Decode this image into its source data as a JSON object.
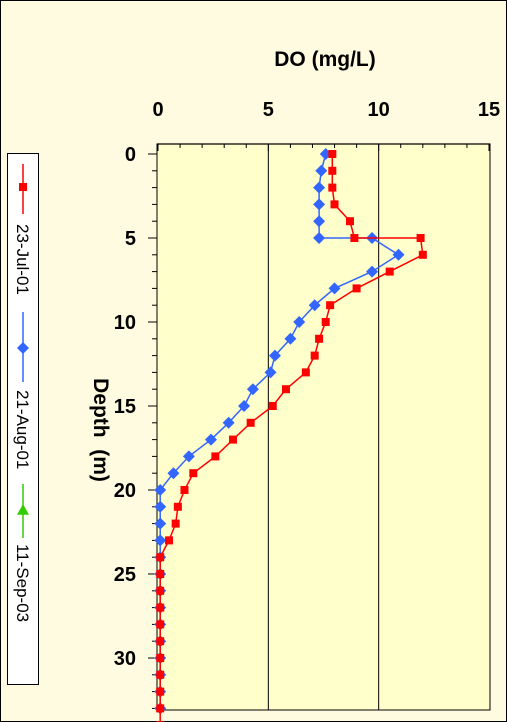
{
  "chart_data": {
    "type": "line",
    "title": "DO (mg/L)",
    "xlabel": "",
    "ylabel": "Depth  (m)",
    "xlim": [
      0,
      15
    ],
    "ylim": [
      0,
      34.5
    ],
    "y_inverted": true,
    "x_axis_position": "top",
    "x_ticks": [
      0,
      5,
      10,
      15
    ],
    "y_ticks": [
      0,
      5,
      10,
      15,
      20,
      25,
      30
    ],
    "vertical_gridlines": [
      5,
      10
    ],
    "legend_placement": "left, rotated vertical",
    "plot_background": "#ffffcc",
    "series": [
      {
        "name": "23-Jul-01",
        "color": "#ff0000",
        "marker": "square",
        "points": [
          [
            7.9,
            0
          ],
          [
            7.9,
            1
          ],
          [
            7.9,
            2
          ],
          [
            8.0,
            3
          ],
          [
            8.7,
            4
          ],
          [
            8.9,
            5
          ],
          [
            11.9,
            5
          ],
          [
            12.0,
            6
          ],
          [
            10.5,
            7
          ],
          [
            9.0,
            8
          ],
          [
            7.8,
            9
          ],
          [
            7.6,
            10
          ],
          [
            7.3,
            11
          ],
          [
            7.1,
            12
          ],
          [
            6.7,
            13
          ],
          [
            5.8,
            14
          ],
          [
            5.2,
            15
          ],
          [
            4.2,
            16
          ],
          [
            3.4,
            17
          ],
          [
            2.6,
            18
          ],
          [
            1.6,
            19
          ],
          [
            1.2,
            20
          ],
          [
            0.9,
            21
          ],
          [
            0.8,
            22
          ],
          [
            0.5,
            23
          ],
          [
            0.1,
            24
          ],
          [
            0.1,
            25
          ],
          [
            0.1,
            26
          ],
          [
            0.1,
            27
          ],
          [
            0.1,
            28
          ],
          [
            0.1,
            29
          ],
          [
            0.1,
            30
          ],
          [
            0.1,
            31
          ],
          [
            0.1,
            32
          ],
          [
            0.1,
            33
          ],
          [
            0.1,
            34
          ]
        ]
      },
      {
        "name": "21-Aug-01",
        "color": "#3366ff",
        "marker": "diamond",
        "points": [
          [
            7.6,
            0
          ],
          [
            7.4,
            1
          ],
          [
            7.3,
            2
          ],
          [
            7.3,
            3
          ],
          [
            7.3,
            4
          ],
          [
            7.3,
            5
          ],
          [
            9.7,
            5
          ],
          [
            10.9,
            6
          ],
          [
            9.7,
            7
          ],
          [
            8.0,
            8
          ],
          [
            7.1,
            9
          ],
          [
            6.4,
            10
          ],
          [
            6.0,
            11
          ],
          [
            5.3,
            12
          ],
          [
            5.1,
            13
          ],
          [
            4.3,
            14
          ],
          [
            3.9,
            15
          ],
          [
            3.2,
            16
          ],
          [
            2.4,
            17
          ],
          [
            1.4,
            18
          ],
          [
            0.7,
            19
          ],
          [
            0.1,
            20
          ],
          [
            0.1,
            21
          ],
          [
            0.1,
            22
          ],
          [
            0.1,
            23
          ],
          [
            0.1,
            24
          ],
          [
            0.1,
            25
          ],
          [
            0.1,
            26
          ],
          [
            0.1,
            27
          ],
          [
            0.1,
            28
          ],
          [
            0.1,
            29
          ],
          [
            0.1,
            30
          ],
          [
            0.1,
            31
          ],
          [
            0.1,
            32
          ],
          [
            0.1,
            33
          ]
        ]
      },
      {
        "name": "11-Sep-03",
        "color": "#33cc00",
        "marker": "triangle",
        "points": []
      }
    ]
  }
}
